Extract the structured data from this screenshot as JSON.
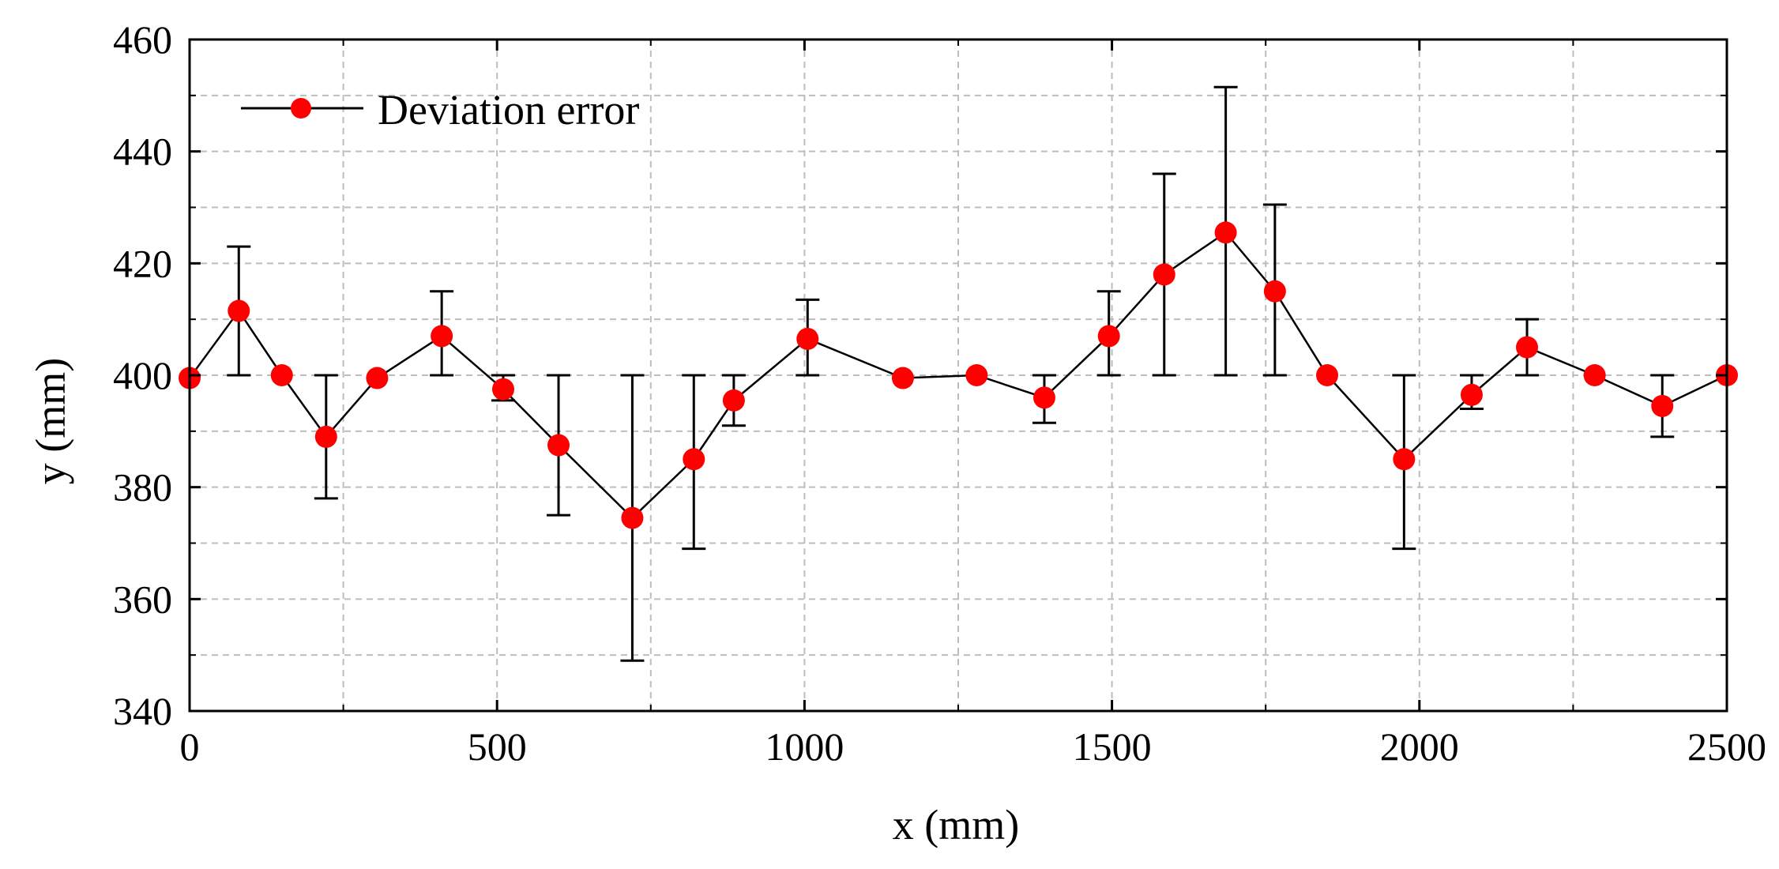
{
  "colors": {
    "marker": "#ff0000",
    "line": "#000000",
    "grid": "#bdbdbd"
  },
  "chart_data": {
    "type": "line",
    "title": "",
    "xlabel": "x (mm)",
    "ylabel": "y (mm)",
    "xlim": [
      0,
      2500
    ],
    "ylim": [
      340,
      460
    ],
    "xticks": [
      0,
      500,
      1000,
      1500,
      2000,
      2500
    ],
    "yticks": [
      340,
      360,
      380,
      400,
      420,
      440,
      460
    ],
    "minor_grid_x": [
      250,
      750,
      1250,
      1750,
      2250
    ],
    "minor_grid_y": [
      350,
      370,
      390,
      410,
      430,
      450
    ],
    "grid": true,
    "legend": {
      "position": "top-left",
      "entries": [
        "Deviation error"
      ]
    },
    "series": [
      {
        "name": "Deviation error",
        "x": [
          0,
          80,
          150,
          222,
          305,
          410,
          510,
          600,
          720,
          820,
          885,
          1005,
          1160,
          1280,
          1390,
          1495,
          1585,
          1685,
          1765,
          1850,
          1975,
          2085,
          2175,
          2285,
          2395,
          2500
        ],
        "y": [
          399.5,
          411.5,
          400,
          389,
          399.5,
          407,
          397.5,
          387.5,
          374.5,
          385,
          395.5,
          406.5,
          399.5,
          400,
          396,
          407,
          418,
          425.5,
          415,
          400,
          385,
          396.5,
          405,
          400,
          394.5,
          400
        ],
        "y_low": [
          null,
          400,
          null,
          378,
          null,
          400,
          395.5,
          375,
          349,
          369,
          391,
          400,
          null,
          null,
          391.5,
          400,
          400,
          400,
          400,
          null,
          369,
          394,
          400,
          null,
          389,
          null
        ],
        "y_high": [
          null,
          423,
          null,
          400,
          null,
          415,
          400,
          400,
          400,
          400,
          400,
          413.5,
          null,
          null,
          400,
          415,
          436,
          451.5,
          430.5,
          null,
          400,
          400,
          410,
          null,
          400,
          null
        ]
      }
    ]
  }
}
